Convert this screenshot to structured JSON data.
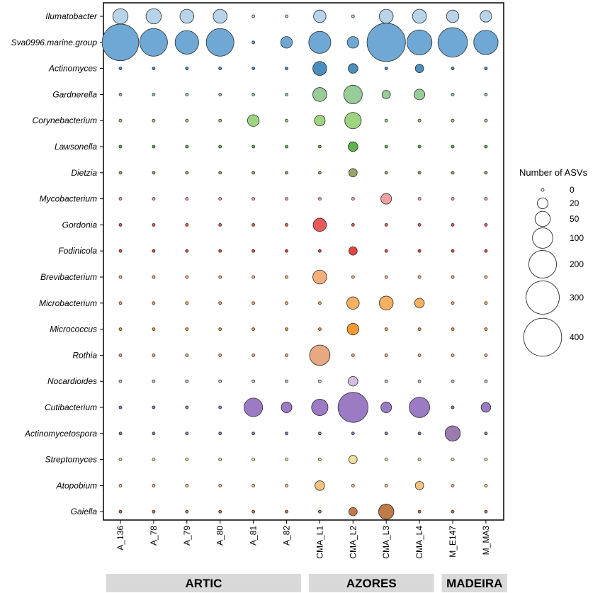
{
  "chart_data": {
    "type": "bubble",
    "title": "",
    "xlabel": "",
    "ylabel": "",
    "samples": [
      "A_136",
      "A_78",
      "A_79",
      "A_80",
      "A_81",
      "A_82",
      "CMA_L1",
      "CMA_L2",
      "CMA_L3",
      "CMA_L4",
      "M_E147",
      "M_MA3"
    ],
    "taxa": [
      "Ilumatobacter",
      "Sva0996.marine.group",
      "Actinomyces",
      "Gardnerella",
      "Corynebacterium",
      "Lawsonella",
      "Dietzia",
      "Mycobacterium",
      "Gordonia",
      "Fodinicola",
      "Brevibacterium",
      "Microbacterium",
      "Micrococcus",
      "Rothia",
      "Nocardioides",
      "Cutibacterium",
      "Actinomycetospora",
      "Streptomyces",
      "Atopobium",
      "Gaiella"
    ],
    "colors": [
      "#b7d4ea",
      "#6fa8d4",
      "#4a90bf",
      "#98cc98",
      "#9ed480",
      "#5fb24c",
      "#9aa56a",
      "#f0a0a0",
      "#e85a5a",
      "#e8453c",
      "#f4b07c",
      "#f5b060",
      "#f59a30",
      "#e8a882",
      "#d6bce0",
      "#9b7bc4",
      "#9b7ab0",
      "#efe19a",
      "#f3c47a",
      "#c07a4a"
    ],
    "values": [
      [
        50,
        50,
        40,
        40,
        0,
        0,
        30,
        0,
        40,
        40,
        30,
        25
      ],
      [
        370,
        200,
        140,
        200,
        0,
        25,
        120,
        25,
        410,
        160,
        230,
        150
      ],
      [
        0,
        0,
        0,
        0,
        0,
        0,
        40,
        15,
        0,
        10,
        0,
        0
      ],
      [
        0,
        0,
        0,
        0,
        0,
        0,
        40,
        80,
        10,
        20,
        0,
        0
      ],
      [
        0,
        0,
        0,
        0,
        25,
        0,
        20,
        60,
        0,
        0,
        0,
        0
      ],
      [
        0,
        0,
        0,
        0,
        0,
        0,
        0,
        15,
        0,
        0,
        0,
        0
      ],
      [
        0,
        0,
        0,
        0,
        0,
        0,
        0,
        10,
        0,
        0,
        0,
        0
      ],
      [
        0,
        0,
        0,
        0,
        0,
        0,
        0,
        0,
        20,
        0,
        0,
        0
      ],
      [
        0,
        0,
        0,
        0,
        0,
        0,
        35,
        0,
        0,
        0,
        0,
        0
      ],
      [
        0,
        0,
        0,
        0,
        0,
        0,
        0,
        10,
        0,
        0,
        0,
        0
      ],
      [
        0,
        0,
        0,
        0,
        0,
        0,
        40,
        0,
        0,
        0,
        0,
        0
      ],
      [
        0,
        0,
        0,
        0,
        0,
        0,
        0,
        30,
        40,
        15,
        0,
        0
      ],
      [
        0,
        0,
        0,
        0,
        0,
        0,
        0,
        25,
        0,
        0,
        0,
        0
      ],
      [
        0,
        0,
        0,
        0,
        0,
        0,
        100,
        0,
        0,
        0,
        0,
        0
      ],
      [
        0,
        0,
        0,
        0,
        0,
        0,
        0,
        15,
        0,
        0,
        0,
        0
      ],
      [
        0,
        0,
        0,
        0,
        80,
        20,
        60,
        240,
        20,
        100,
        0,
        15
      ],
      [
        0,
        0,
        0,
        0,
        0,
        0,
        0,
        0,
        0,
        0,
        50,
        0
      ],
      [
        0,
        0,
        0,
        0,
        0,
        0,
        0,
        10,
        0,
        0,
        0,
        0
      ],
      [
        0,
        0,
        0,
        0,
        0,
        0,
        15,
        0,
        0,
        10,
        0,
        0
      ],
      [
        0,
        0,
        0,
        0,
        0,
        0,
        0,
        10,
        50,
        0,
        0,
        0
      ]
    ],
    "size_legend": {
      "title": "Number of ASVs",
      "values": [
        0,
        20,
        50,
        100,
        200,
        300,
        400
      ],
      "labels": [
        "0",
        "20",
        "50",
        "100",
        "200",
        "300",
        "400"
      ]
    },
    "groups": [
      {
        "label": "ARTIC",
        "samples": [
          "A_136",
          "A_78",
          "A_79",
          "A_80",
          "A_81",
          "A_82"
        ]
      },
      {
        "label": "AZORES",
        "samples": [
          "CMA_L1",
          "CMA_L2",
          "CMA_L3",
          "CMA_L4"
        ]
      },
      {
        "label": "MADEIRA",
        "samples": [
          "M_E147",
          "M_MA3"
        ]
      }
    ]
  }
}
